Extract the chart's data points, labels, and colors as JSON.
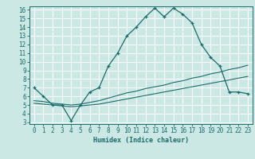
{
  "title": "",
  "xlabel": "Humidex (Indice chaleur)",
  "xlim": [
    0,
    23
  ],
  "ylim": [
    3,
    16
  ],
  "bg_color": "#cce8e4",
  "line_color": "#1a6b6b",
  "grid_color": "#ffffff",
  "line1_x": [
    0,
    1,
    2,
    3,
    4,
    5,
    6,
    7,
    8,
    9,
    10,
    11,
    12,
    13,
    14,
    15,
    16,
    17,
    18,
    19,
    20,
    21,
    22,
    23
  ],
  "line1_y": [
    7.0,
    6.0,
    5.0,
    5.0,
    3.2,
    5.0,
    6.5,
    7.0,
    9.5,
    11.0,
    13.0,
    14.0,
    15.2,
    16.2,
    15.2,
    16.2,
    15.5,
    14.5,
    12.0,
    10.5,
    9.5,
    6.5,
    6.5,
    6.3
  ],
  "line2_x": [
    0,
    1,
    2,
    3,
    4,
    5,
    6,
    7,
    8,
    9,
    10,
    11,
    12,
    13,
    14,
    15,
    16,
    17,
    18,
    19,
    20,
    21,
    22,
    23
  ],
  "line2_y": [
    5.5,
    5.4,
    5.2,
    5.1,
    5.0,
    5.1,
    5.3,
    5.5,
    5.8,
    6.1,
    6.4,
    6.6,
    6.9,
    7.1,
    7.3,
    7.6,
    7.8,
    8.1,
    8.3,
    8.6,
    8.8,
    9.1,
    9.3,
    9.6
  ],
  "line3_x": [
    0,
    1,
    2,
    3,
    4,
    5,
    6,
    7,
    8,
    9,
    10,
    11,
    12,
    13,
    14,
    15,
    16,
    17,
    18,
    19,
    20,
    21,
    22,
    23
  ],
  "line3_y": [
    5.2,
    5.1,
    5.0,
    4.9,
    4.8,
    4.9,
    5.0,
    5.1,
    5.3,
    5.5,
    5.7,
    5.9,
    6.1,
    6.3,
    6.5,
    6.7,
    6.9,
    7.1,
    7.3,
    7.5,
    7.7,
    7.9,
    8.1,
    8.3
  ],
  "xticks": [
    0,
    1,
    2,
    3,
    4,
    5,
    6,
    7,
    8,
    9,
    10,
    11,
    12,
    13,
    14,
    15,
    16,
    17,
    18,
    19,
    20,
    21,
    22,
    23
  ],
  "yticks": [
    3,
    4,
    5,
    6,
    7,
    8,
    9,
    10,
    11,
    12,
    13,
    14,
    15,
    16
  ],
  "tick_fontsize": 5.5,
  "label_fontsize": 6.0
}
